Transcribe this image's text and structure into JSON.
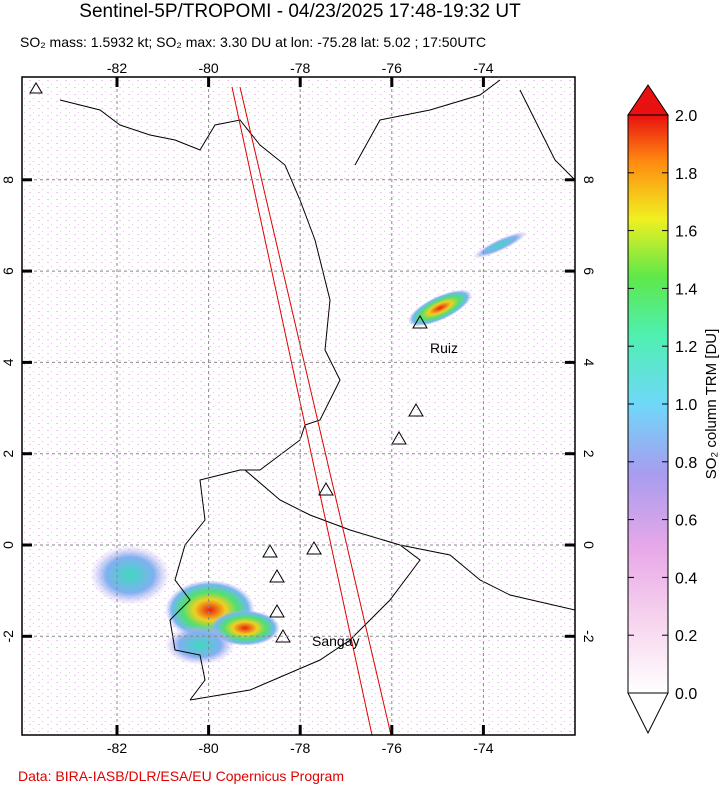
{
  "header": {
    "title": "Sentinel-5P/TROPOMI - 04/23/2025 17:48-19:32 UT",
    "subtitle": "SO₂ mass: 1.5932 kt; SO₂ max: 3.30 DU at lon: -75.28 lat: 5.02 ; 17:50UTC"
  },
  "map": {
    "lon_ticks": [
      -82,
      -80,
      -78,
      -76,
      -74
    ],
    "lat_ticks": [
      -2,
      0,
      2,
      4,
      6,
      8
    ],
    "labels": [
      "Ruiz",
      "Sangay"
    ]
  },
  "colorbar": {
    "label": "SO₂ column TRM [DU]",
    "ticks": [
      {
        "value": 0,
        "label": "0.0"
      },
      {
        "value": 0.2,
        "label": "0.2"
      },
      {
        "value": 0.4,
        "label": "0.4"
      },
      {
        "value": 0.6,
        "label": "0.6"
      },
      {
        "value": 0.8,
        "label": "0.8"
      },
      {
        "value": 1,
        "label": "1.0"
      },
      {
        "value": 1.2,
        "label": "1.2"
      },
      {
        "value": 1.4,
        "label": "1.4"
      },
      {
        "value": 1.6,
        "label": "1.6"
      },
      {
        "value": 1.8,
        "label": "1.8"
      },
      {
        "value": 2,
        "label": "2.0"
      }
    ]
  },
  "footer": {
    "credit": "Data: BIRA-IASB/DLR/ESA/EU Copernicus Program"
  }
}
